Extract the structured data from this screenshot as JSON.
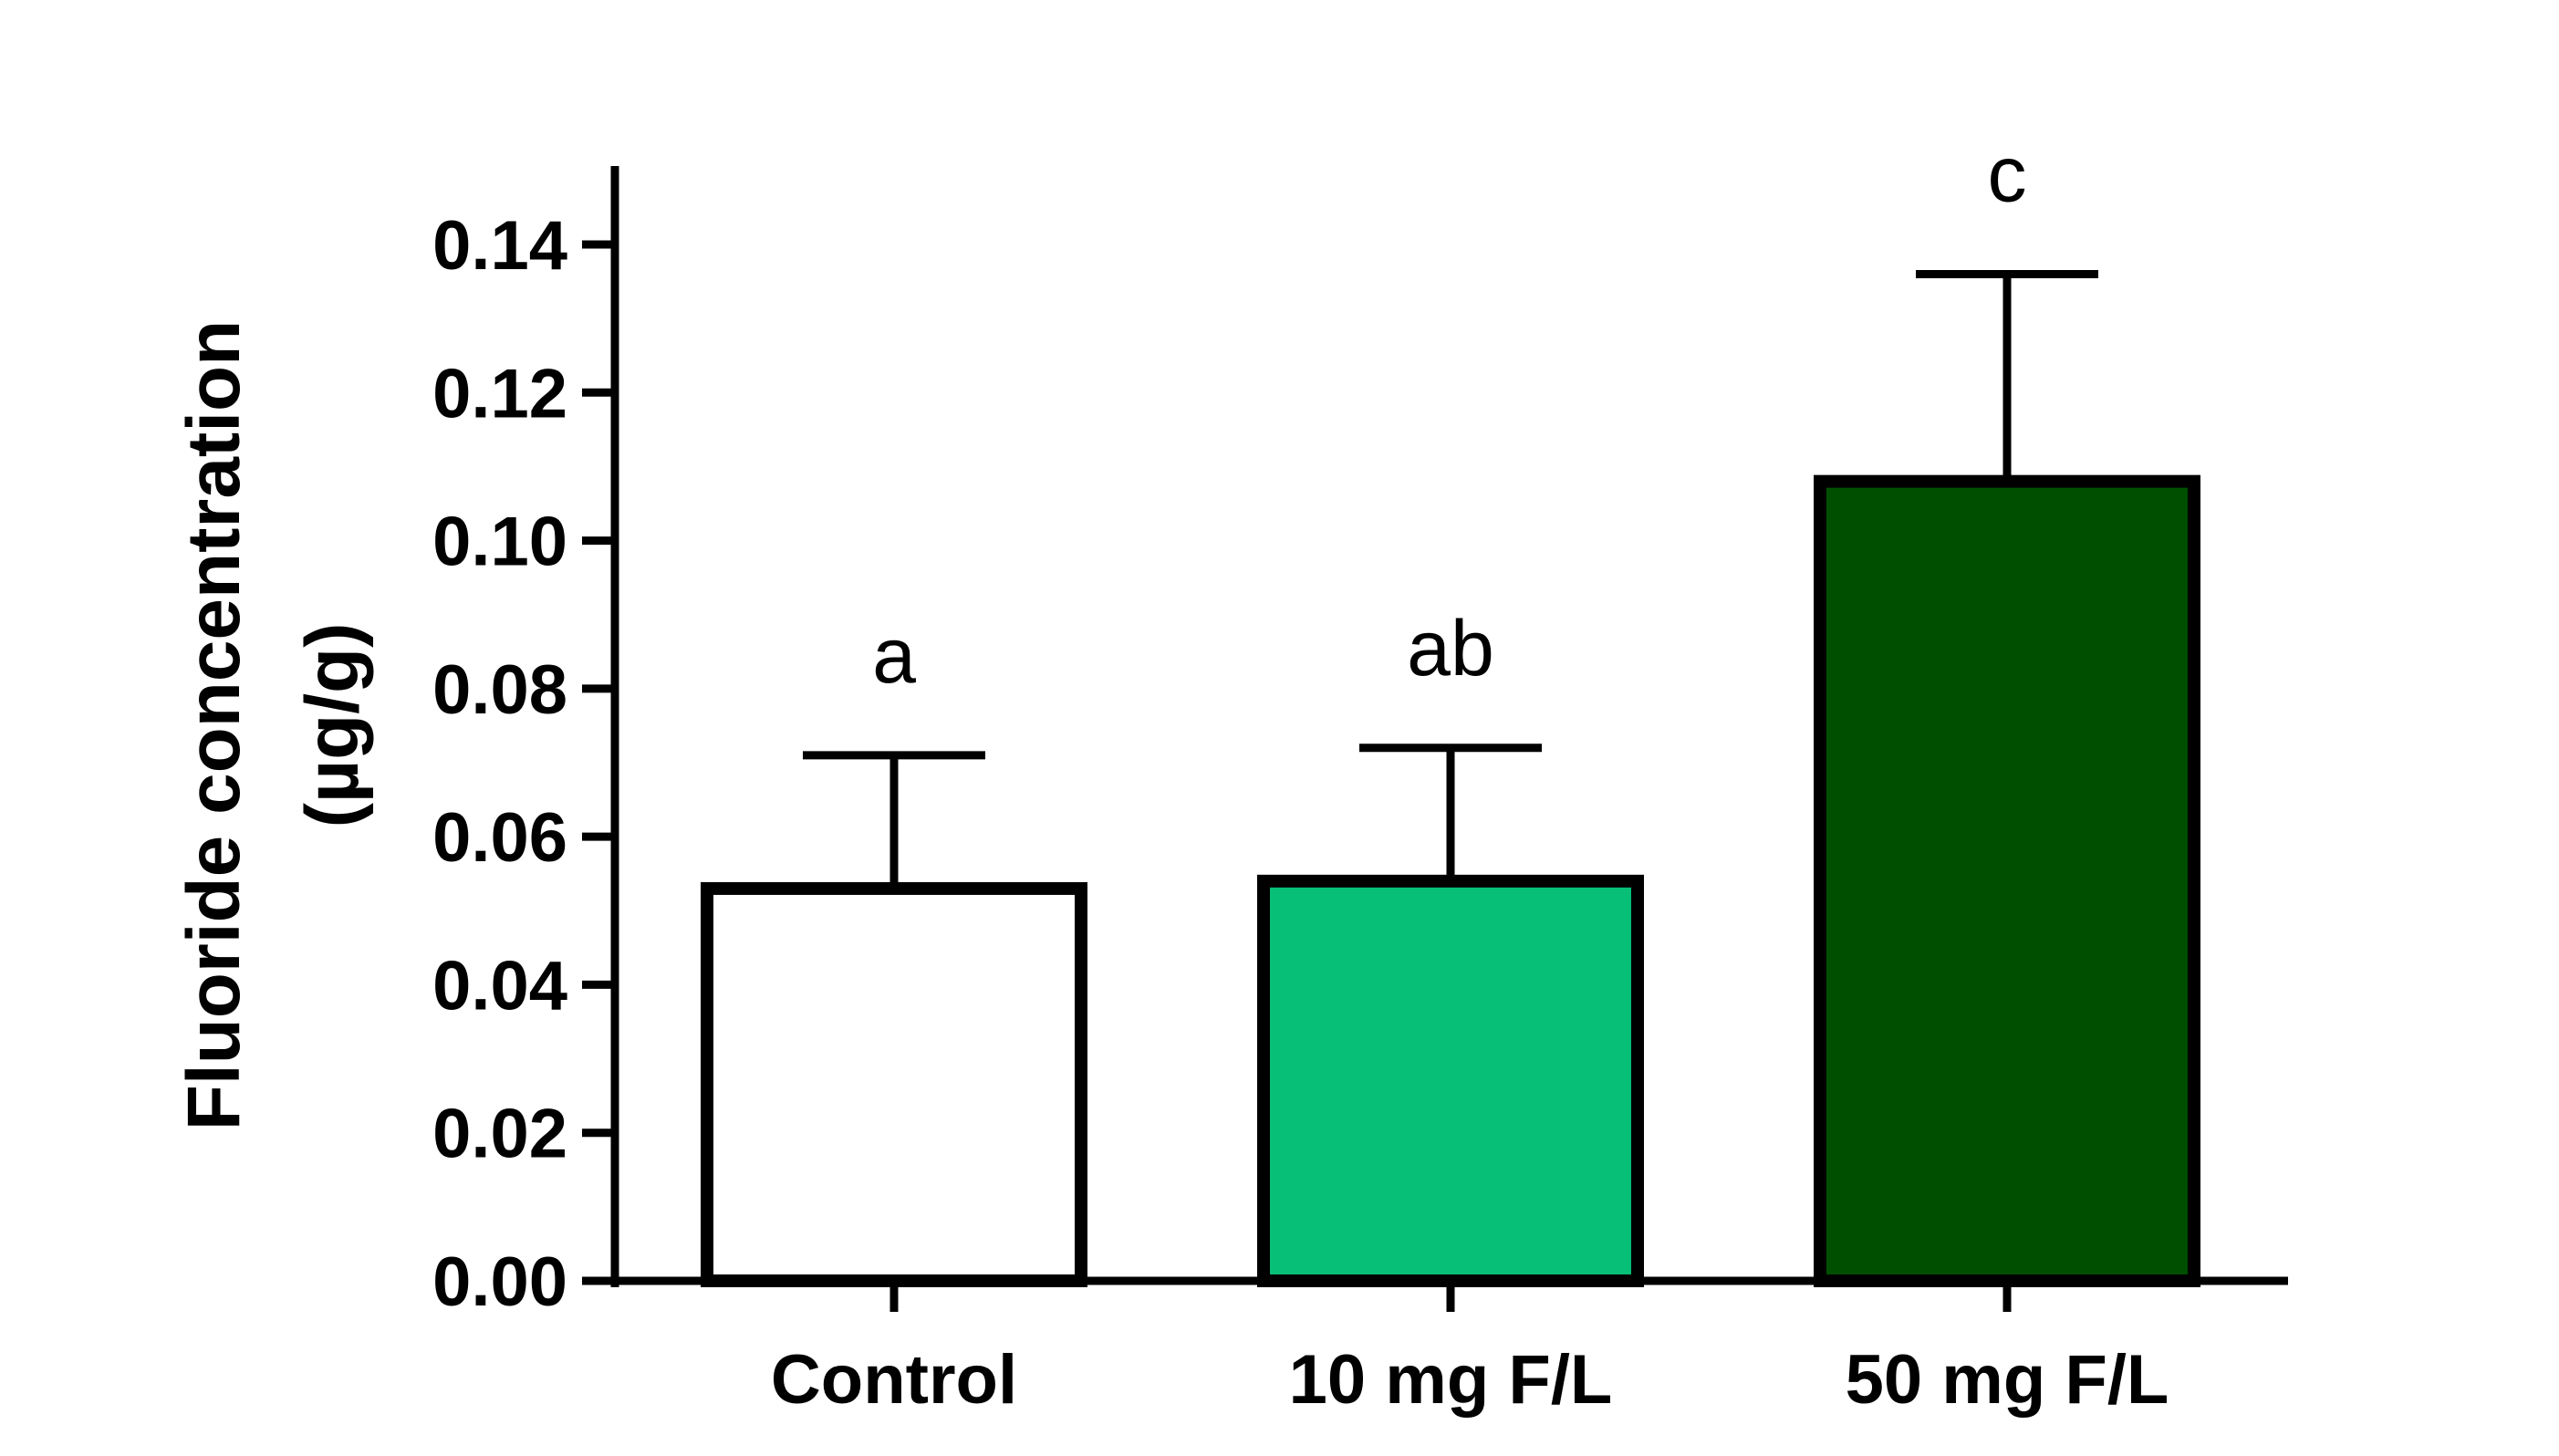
{
  "chart_data": {
    "type": "bar",
    "title": "",
    "xlabel": "",
    "ylabel_line1": "Fluoride concentration",
    "ylabel_line2": "(µg/g)",
    "ylim": [
      0,
      0.15
    ],
    "yticks": [
      "0.00",
      "0.02",
      "0.04",
      "0.06",
      "0.08",
      "0.10",
      "0.12",
      "0.14"
    ],
    "ytick_values": [
      0,
      0.02,
      0.04,
      0.06,
      0.08,
      0.1,
      0.12,
      0.14
    ],
    "categories": [
      "Control",
      "10 mg F/L",
      "50 mg F/L"
    ],
    "values": [
      0.053,
      0.054,
      0.108
    ],
    "errors": [
      0.018,
      0.018,
      0.028
    ],
    "significance": [
      "a",
      "ab",
      "c"
    ],
    "colors": [
      "#ffffff",
      "#08bf78",
      "#004f00"
    ],
    "grid": false,
    "legend": "none"
  }
}
